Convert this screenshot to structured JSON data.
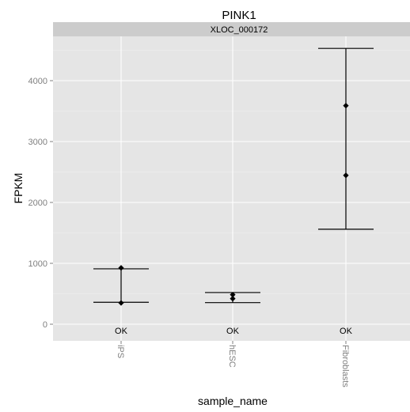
{
  "chart_data": {
    "type": "errorbar",
    "title": "PINK1",
    "facet_label": "XLOC_000172",
    "xlabel": "sample_name",
    "ylabel": "FPKM",
    "categories": [
      "iPS",
      "hESC",
      "Fibroblasts"
    ],
    "points": [
      [
        925,
        350
      ],
      [
        485,
        420
      ],
      [
        3590,
        2445
      ]
    ],
    "error_bars": [
      {
        "low": 360,
        "high": 910
      },
      {
        "low": 355,
        "high": 520
      },
      {
        "low": 1560,
        "high": 4530
      }
    ],
    "status_labels": [
      "OK",
      "OK",
      "OK"
    ],
    "y_ticks": [
      0,
      1000,
      2000,
      3000,
      4000
    ],
    "ylim": [
      -250,
      4750
    ],
    "grid": true,
    "colors": {
      "panel_bg": "#e5e5e5",
      "strip_bg": "#cccccc",
      "grid_major": "#ffffff",
      "grid_minor": "#f2f2f2",
      "axis_text": "#7f7f7f",
      "marks": "#000000"
    }
  }
}
